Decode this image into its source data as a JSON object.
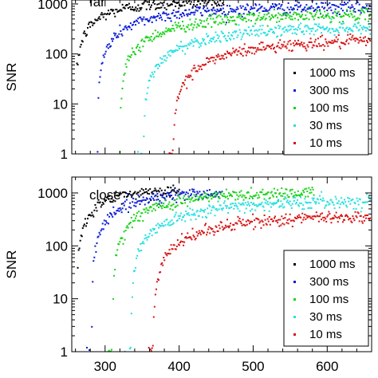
{
  "chart_data": [
    {
      "type": "scatter",
      "annotation": "far",
      "xlim": [
        255,
        660
      ],
      "ylim": [
        1,
        1200
      ],
      "yscale": "log",
      "ylabel": "SNR",
      "xlabel": "",
      "xticks": [
        300,
        400,
        500,
        600
      ],
      "yticks": [
        1,
        10,
        100,
        1000
      ],
      "legend_position": "bottom-right",
      "series": [
        {
          "name": "1000 ms",
          "color": "#000000",
          "x_range": [
            262,
            460
          ],
          "curve": {
            "a": 1.0,
            "b": 1100,
            "k": 0.02,
            "x0": 260
          }
        },
        {
          "name": "300 ms",
          "color": "#0a1ad6",
          "x_range": [
            262,
            658
          ],
          "curve": {
            "a": 1.0,
            "b": 850,
            "k": 0.0128,
            "x0": 290
          }
        },
        {
          "name": "100 ms",
          "color": "#19d219",
          "x_range": [
            262,
            658
          ],
          "curve": {
            "a": 1.0,
            "b": 620,
            "k": 0.0102,
            "x0": 320
          }
        },
        {
          "name": "30 ms",
          "color": "#28e0e0",
          "x_range": [
            262,
            658
          ],
          "curve": {
            "a": 1.0,
            "b": 360,
            "k": 0.0092,
            "x0": 352
          }
        },
        {
          "name": "10 ms",
          "color": "#d61414",
          "x_range": [
            262,
            658
          ],
          "curve": {
            "a": 1.0,
            "b": 200,
            "k": 0.0089,
            "x0": 392
          }
        }
      ]
    },
    {
      "type": "scatter",
      "annotation": "close",
      "xlim": [
        255,
        660
      ],
      "ylim": [
        1,
        2000
      ],
      "yscale": "log",
      "ylabel": "SNR",
      "xlabel": "",
      "xticks": [
        300,
        400,
        500,
        600
      ],
      "xtick_labels": [
        "300",
        "400",
        "500",
        "600"
      ],
      "yticks": [
        1,
        10,
        100,
        1000
      ],
      "legend_position": "bottom-right",
      "series": [
        {
          "name": "1000 ms",
          "color": "#000000",
          "x_range": [
            262,
            400
          ],
          "curve": {
            "a": 1.0,
            "b": 1150,
            "k": 0.024,
            "x0": 262
          }
        },
        {
          "name": "300 ms",
          "color": "#0a1ad6",
          "x_range": [
            262,
            458
          ],
          "curve": {
            "a": 1.0,
            "b": 1050,
            "k": 0.0175,
            "x0": 282
          }
        },
        {
          "name": "100 ms",
          "color": "#19d219",
          "x_range": [
            262,
            582
          ],
          "curve": {
            "a": 1.0,
            "b": 1050,
            "k": 0.012,
            "x0": 310
          }
        },
        {
          "name": "30 ms",
          "color": "#28e0e0",
          "x_range": [
            262,
            658
          ],
          "curve": {
            "a": 1.0,
            "b": 720,
            "k": 0.0105,
            "x0": 335
          }
        },
        {
          "name": "10 ms",
          "color": "#d61414",
          "x_range": [
            262,
            658
          ],
          "curve": {
            "a": 1.0,
            "b": 380,
            "k": 0.0098,
            "x0": 365
          }
        }
      ]
    }
  ]
}
